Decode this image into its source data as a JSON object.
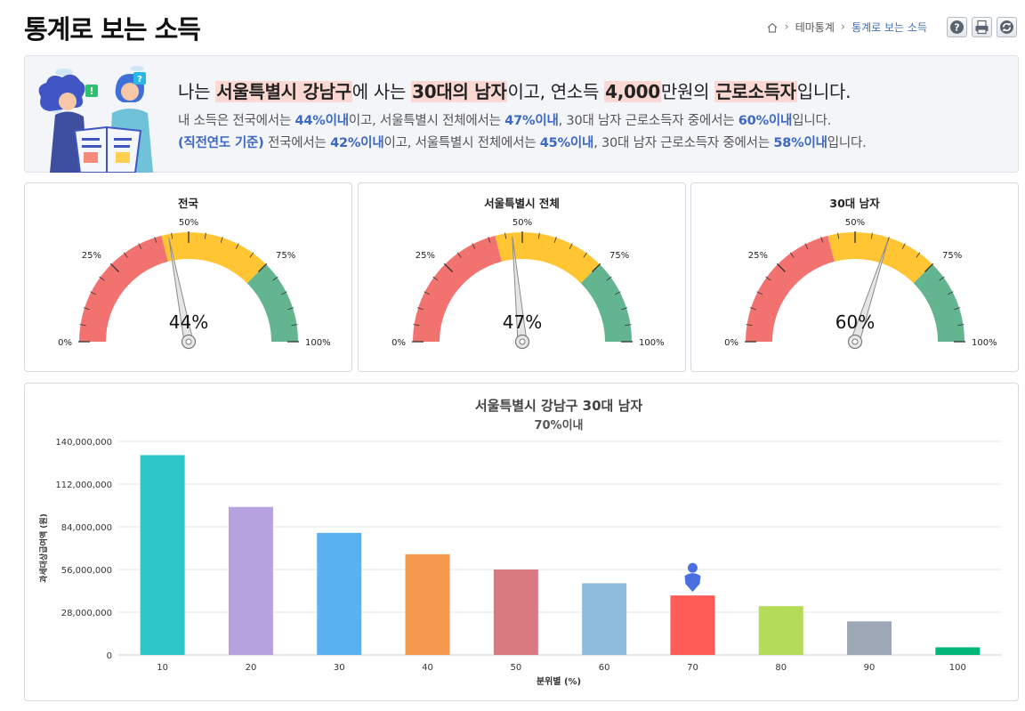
{
  "page": {
    "title": "통계로 보는 소득"
  },
  "breadcrumb": {
    "items": [
      "테마통계",
      "통계로 보는 소득"
    ]
  },
  "toolbar": {
    "help": "help-icon",
    "print": "print-icon",
    "refresh": "refresh-icon"
  },
  "summary": {
    "main": {
      "p1": "나는 ",
      "region": "서울특별시 강남구",
      "p2": "에 사는 ",
      "group": "30대의 남자",
      "p3": "이고, 연소득 ",
      "income": "4,000",
      "p4": "만원의 ",
      "type": "근로소득자",
      "p5": "입니다."
    },
    "line1": {
      "p1": "내 소득은 전국에서는 ",
      "v1": "44%이내",
      "p2": "이고, 서울특별시 전체에서는 ",
      "v2": "47%이내",
      "p3": ", 30대 남자 근로소득자 중에서는 ",
      "v3": "60%이내",
      "p4": "입니다."
    },
    "line2": {
      "tag": "(직전연도 기준)",
      "p1": " 전국에서는 ",
      "v1": "42%이내",
      "p2": "이고, 서울특별시 전체에서는 ",
      "v2": "45%이내",
      "p3": ", 30대 남자 근로소득자 중에서는 ",
      "v3": "58%이내",
      "p4": "입니다."
    }
  },
  "gauges": [
    {
      "title": "전국",
      "value": 44,
      "label": "44%"
    },
    {
      "title": "서울특별시 전체",
      "value": 47,
      "label": "47%"
    },
    {
      "title": "30대 남자",
      "value": 60,
      "label": "60%"
    }
  ],
  "gauge_ticks": {
    "t0": "0%",
    "t25": "25%",
    "t50": "50%",
    "t75": "75%",
    "t100": "100%"
  },
  "gauge_colors": {
    "low": "#f2726f",
    "mid": "#ffc533",
    "high": "#62b58f"
  },
  "chart_data": {
    "type": "bar",
    "title": "서울특별시 강남구 30대 남자",
    "subtitle": "70%이내",
    "xlabel": "분위별 (%)",
    "ylabel": "과세대상급여액 (원)",
    "categories": [
      "10",
      "20",
      "30",
      "40",
      "50",
      "60",
      "70",
      "80",
      "90",
      "100"
    ],
    "values": [
      131000000,
      97000000,
      80000000,
      66000000,
      56000000,
      47000000,
      39000000,
      32000000,
      22000000,
      5000000
    ],
    "colors": [
      "#2ec7c9",
      "#b6a2de",
      "#5ab1ef",
      "#f5994e",
      "#d87a80",
      "#8fbbdc",
      "#ff5b57",
      "#b5dc58",
      "#9ea7b5",
      "#00b779"
    ],
    "yticks": [
      "0",
      "28,000,000",
      "56,000,000",
      "84,000,000",
      "112,000,000",
      "140,000,000"
    ],
    "ylim": [
      0,
      140000000
    ],
    "grid": true,
    "marker_category": "70"
  }
}
